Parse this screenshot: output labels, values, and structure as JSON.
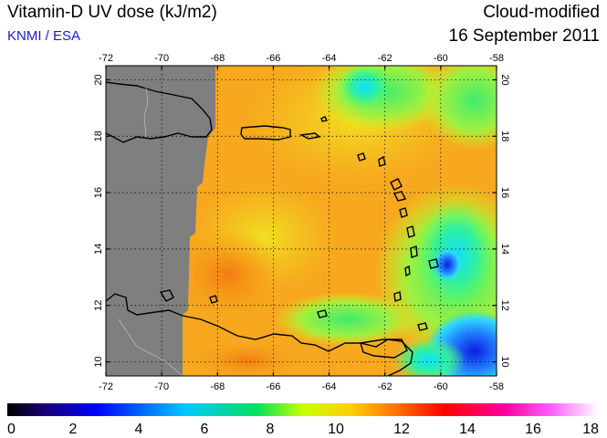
{
  "header": {
    "title": "Vitamin-D UV dose (kJ/m2)",
    "credit": "KNMI / ESA",
    "product_type": "Cloud-modified",
    "date": "16 September 2011"
  },
  "map": {
    "lon_ticks": [
      "-72",
      "-70",
      "-68",
      "-66",
      "-64",
      "-62",
      "-60",
      "-58"
    ],
    "lat_ticks": [
      "10",
      "12",
      "14",
      "16",
      "18",
      "20"
    ],
    "lon_range": [
      -72,
      -58
    ],
    "lat_range": [
      9.5,
      20.5
    ],
    "grid": true,
    "no_data_color": "#7f7f7f",
    "dominant_color": "#f7a81e"
  },
  "colorbar": {
    "ticks": [
      "0",
      "2",
      "4",
      "6",
      "8",
      "10",
      "12",
      "14",
      "16",
      "18"
    ],
    "range": [
      0,
      18
    ],
    "stops": [
      "#000000",
      "#1a0070",
      "#0000ff",
      "#00c8ff",
      "#00e060",
      "#c8ff00",
      "#ffd000",
      "#ff7000",
      "#ff0000",
      "#ff00a0",
      "#ff60ff",
      "#ffffff"
    ]
  }
}
